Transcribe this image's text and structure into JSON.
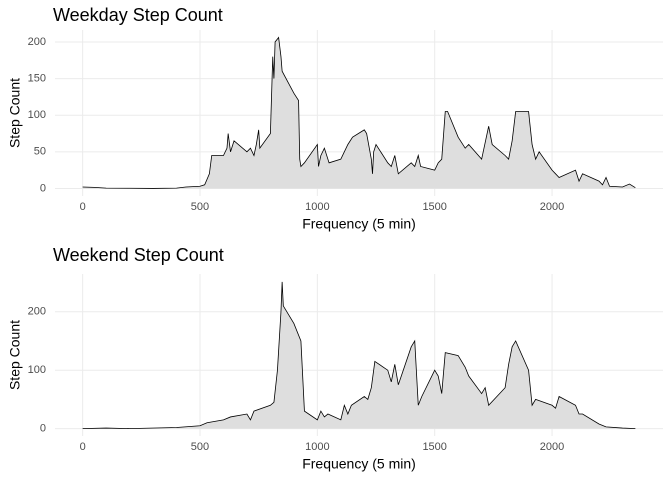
{
  "chart_data": [
    {
      "type": "area",
      "title": "Weekday Step Count",
      "x_label": "Frequency (5 min)",
      "y_label": "Step Count",
      "x": [
        0,
        50,
        100,
        200,
        300,
        400,
        440,
        500,
        520,
        540,
        550,
        600,
        615,
        620,
        630,
        645,
        700,
        715,
        730,
        740,
        750,
        755,
        800,
        810,
        815,
        820,
        835,
        845,
        850,
        900,
        920,
        925,
        930,
        945,
        1000,
        1005,
        1015,
        1030,
        1050,
        1100,
        1115,
        1130,
        1150,
        1200,
        1210,
        1230,
        1235,
        1240,
        1250,
        1300,
        1315,
        1330,
        1345,
        1400,
        1415,
        1430,
        1440,
        1500,
        1515,
        1530,
        1545,
        1555,
        1600,
        1630,
        1645,
        1700,
        1730,
        1745,
        1800,
        1815,
        1830,
        1845,
        1900,
        1915,
        1930,
        1945,
        2000,
        2015,
        2030,
        2100,
        2115,
        2130,
        2200,
        2215,
        2230,
        2245,
        2300,
        2330,
        2355
      ],
      "values": [
        2,
        1.5,
        0.5,
        0.3,
        0,
        0.5,
        2,
        3,
        5,
        20,
        45,
        45,
        55,
        75,
        50,
        65,
        50,
        55,
        45,
        60,
        80,
        55,
        75,
        180,
        150,
        200,
        206,
        180,
        160,
        130,
        120,
        40,
        30,
        35,
        60,
        30,
        45,
        55,
        35,
        40,
        50,
        60,
        70,
        80,
        75,
        40,
        20,
        50,
        60,
        35,
        30,
        45,
        20,
        35,
        30,
        45,
        30,
        25,
        35,
        40,
        105,
        105,
        70,
        55,
        60,
        40,
        85,
        60,
        45,
        40,
        65,
        105,
        105,
        60,
        40,
        50,
        25,
        20,
        15,
        25,
        10,
        20,
        10,
        5,
        15,
        3,
        2,
        6,
        1
      ],
      "color": "#dedede",
      "line_color": "#000000",
      "xlim": [
        -117.75,
        2472.75
      ],
      "ylim": [
        -10.3,
        216.3
      ],
      "xticks": [
        0,
        500,
        1000,
        1500,
        2000
      ],
      "yticks": [
        0,
        50,
        100,
        150,
        200
      ],
      "grid": true
    },
    {
      "type": "area",
      "title": "Weekend Step Count",
      "x_label": "Frequency (5 min)",
      "y_label": "Step Count",
      "x": [
        0,
        100,
        200,
        400,
        500,
        530,
        600,
        630,
        700,
        715,
        730,
        800,
        815,
        830,
        845,
        850,
        855,
        900,
        930,
        945,
        1000,
        1015,
        1030,
        1045,
        1100,
        1115,
        1130,
        1145,
        1200,
        1215,
        1230,
        1245,
        1300,
        1315,
        1330,
        1345,
        1400,
        1415,
        1430,
        1445,
        1500,
        1515,
        1530,
        1545,
        1600,
        1615,
        1630,
        1645,
        1700,
        1715,
        1730,
        1800,
        1815,
        1830,
        1845,
        1900,
        1915,
        1930,
        2000,
        2015,
        2030,
        2100,
        2115,
        2130,
        2200,
        2230,
        2300,
        2355
      ],
      "values": [
        0,
        1,
        0,
        2,
        5,
        10,
        15,
        20,
        25,
        15,
        30,
        40,
        45,
        100,
        200,
        251,
        210,
        180,
        150,
        30,
        15,
        30,
        20,
        25,
        15,
        40,
        25,
        40,
        55,
        50,
        70,
        115,
        100,
        80,
        110,
        75,
        140,
        150,
        40,
        55,
        100,
        90,
        60,
        130,
        125,
        115,
        105,
        90,
        60,
        70,
        40,
        70,
        110,
        140,
        150,
        100,
        40,
        50,
        40,
        35,
        55,
        40,
        25,
        25,
        8,
        3,
        1,
        0
      ],
      "color": "#dedede",
      "line_color": "#000000",
      "xlim": [
        -117.75,
        2472.75
      ],
      "ylim": [
        -12.6,
        264.6
      ],
      "xticks": [
        0,
        500,
        1000,
        1500,
        2000
      ],
      "yticks": [
        0,
        100,
        200
      ],
      "grid": true
    }
  ]
}
